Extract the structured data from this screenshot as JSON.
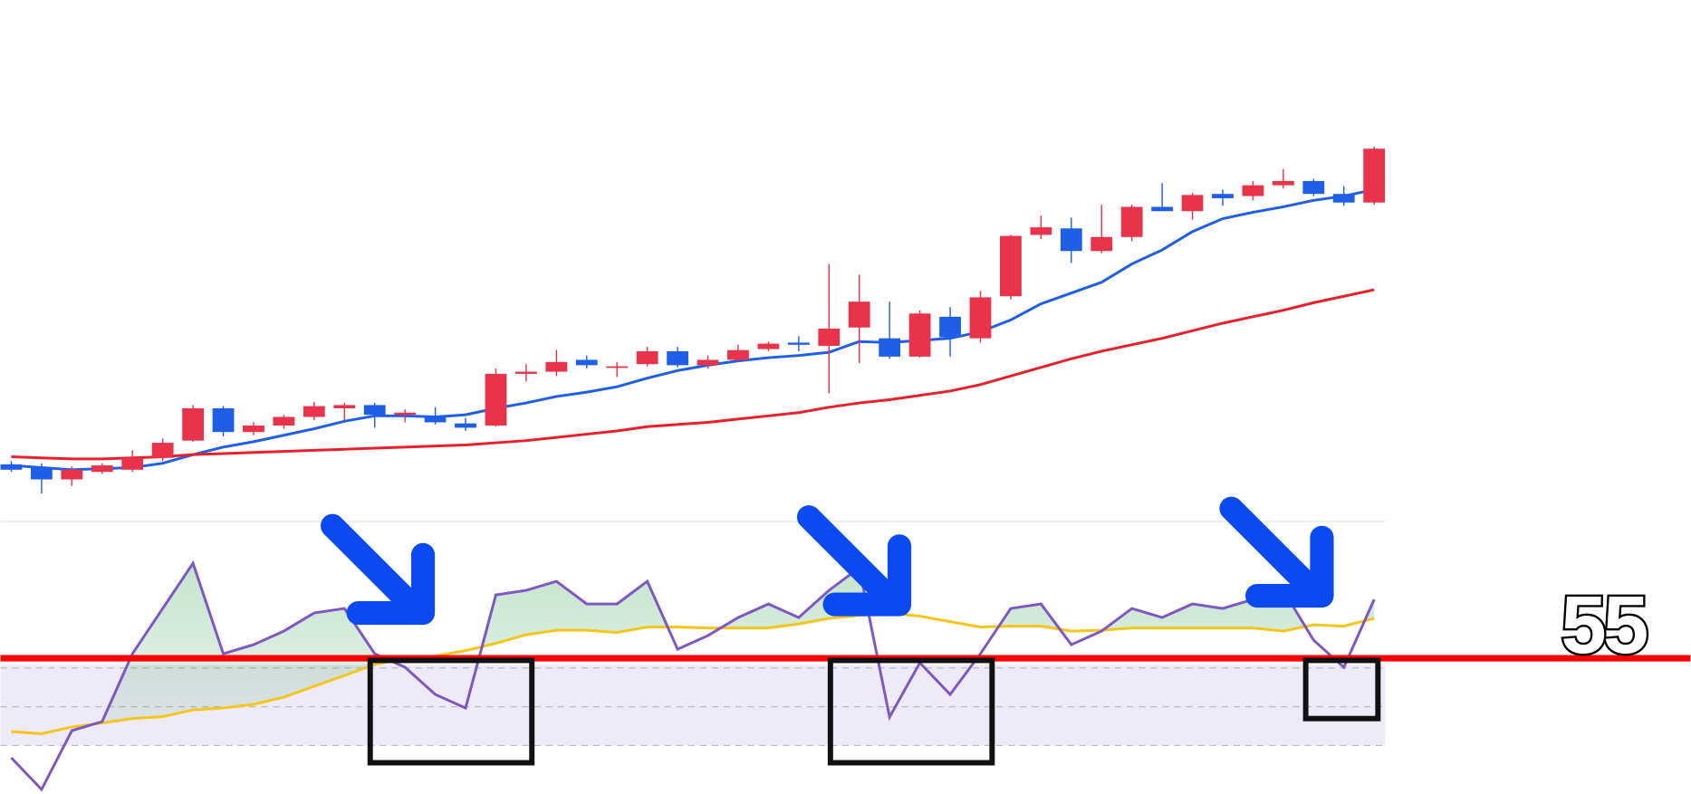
{
  "chart_data": [
    {
      "type": "candlestick",
      "up_color": "#e8334a",
      "down_color": "#1f5fe8",
      "ylim": [
        0,
        360
      ],
      "open": [
        49,
        46,
        35,
        42,
        44,
        55,
        71,
        101,
        79,
        85,
        93,
        101,
        104,
        95,
        94,
        87,
        85,
        133,
        135,
        146,
        139,
        142,
        154,
        141,
        146,
        156,
        162,
        159,
        176,
        166,
        149,
        186,
        166,
        205,
        262,
        268,
        247,
        260,
        288,
        284,
        300,
        298,
        308,
        312,
        300,
        292
      ],
      "close": [
        44,
        35,
        44,
        48,
        55,
        69,
        101,
        79,
        85,
        93,
        103,
        104,
        95,
        97,
        88,
        83,
        133,
        135,
        144,
        141,
        140,
        154,
        141,
        146,
        155,
        161,
        160,
        175,
        200,
        149,
        189,
        167,
        204,
        261,
        269,
        247,
        260,
        288,
        284,
        299,
        296,
        308,
        312,
        300,
        292,
        342
      ],
      "high": [
        52,
        50,
        47,
        50,
        62,
        73,
        104,
        103,
        88,
        95,
        107,
        106,
        106,
        100,
        102,
        92,
        138,
        142,
        155,
        150,
        144,
        158,
        158,
        150,
        160,
        163,
        168,
        235,
        225,
        200,
        192,
        195,
        210,
        262,
        280,
        278,
        290,
        290,
        310,
        301,
        304,
        312,
        323,
        314,
        307,
        344
      ],
      "low": [
        42,
        22,
        29,
        40,
        42,
        52,
        70,
        75,
        76,
        82,
        90,
        90,
        83,
        88,
        86,
        80,
        84,
        126,
        131,
        138,
        130,
        140,
        139,
        138,
        144,
        154,
        154,
        115,
        143,
        147,
        148,
        149,
        162,
        202,
        258,
        236,
        245,
        256,
        284,
        276,
        289,
        294,
        305,
        298,
        289,
        290
      ],
      "overlays": [
        {
          "color": "#1f5fe8",
          "values": [
            48,
            46,
            44,
            45,
            46,
            50,
            58,
            65,
            70,
            76,
            82,
            89,
            94,
            94,
            93,
            95,
            101,
            106,
            112,
            116,
            121,
            129,
            136,
            141,
            145,
            148,
            150,
            153,
            163,
            162,
            164,
            166,
            172,
            183,
            198,
            208,
            218,
            235,
            248,
            265,
            277,
            283,
            288,
            294,
            298,
            304
          ]
        },
        {
          "color": "#e8202a",
          "values": [
            56,
            55,
            54,
            54,
            55,
            56,
            58,
            59,
            60,
            61,
            62,
            63,
            64,
            65,
            66,
            67,
            69,
            71,
            74,
            77,
            80,
            84,
            86,
            88,
            91,
            94,
            97,
            102,
            106,
            109,
            113,
            117,
            123,
            131,
            139,
            147,
            154,
            160,
            166,
            173,
            180,
            186,
            192,
            199,
            205,
            211
          ]
        }
      ]
    },
    {
      "type": "line",
      "ylim": [
        25,
        85
      ],
      "level": 55,
      "level_color": "#ff0000",
      "fill_color": "#2e9e4a",
      "series": [
        {
          "color": "#7e57c2",
          "values": [
            33,
            26,
            39,
            41,
            56,
            66,
            76,
            56,
            58,
            61,
            65,
            66,
            56,
            53,
            47,
            44,
            69,
            70,
            72,
            67,
            67,
            72,
            57,
            60,
            64,
            67,
            64,
            70,
            75,
            42,
            54,
            47,
            56,
            66,
            67,
            58,
            61,
            66,
            64,
            67,
            66,
            68,
            70,
            59,
            53,
            68
          ]
        },
        {
          "color": "#f5c518",
          "values": [
            38.8,
            38.3,
            39.8,
            40.7,
            41.7,
            42.1,
            43.6,
            44,
            44.8,
            46.4,
            48.8,
            51.2,
            53.6,
            55,
            55.5,
            56.7,
            58.3,
            60.2,
            61.2,
            61.2,
            60.7,
            61.9,
            61.9,
            61.7,
            61.7,
            61.7,
            62.6,
            63.8,
            64.5,
            65,
            64.3,
            63.1,
            61.9,
            62.1,
            62.1,
            61,
            61.2,
            61.7,
            61.7,
            61.7,
            61.7,
            61.7,
            61,
            62.4,
            62.1,
            63.8
          ]
        }
      ]
    }
  ]
}
